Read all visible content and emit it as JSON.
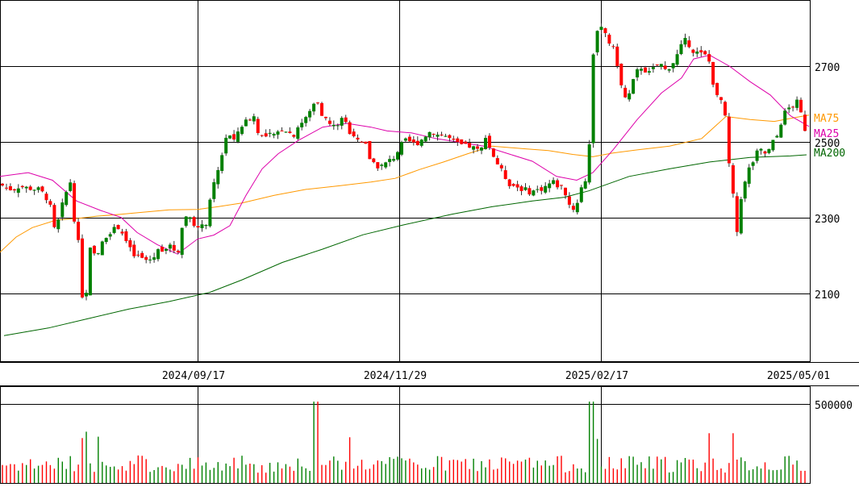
{
  "chart_data": [
    {
      "type": "candlestick",
      "title": "",
      "xlabel": "",
      "ylabel": "",
      "ylim": [
        1960,
        2840
      ],
      "yticks": [
        2100,
        2300,
        2500,
        2700
      ],
      "xticks": [
        "2024/09/17",
        "2024/11/29",
        "2025/02/17",
        "2025/05/01"
      ],
      "grid": true,
      "legend_placement": "right",
      "colors": {
        "up": "#008000",
        "down": "#ff0000",
        "ma25": "#dd00aa",
        "ma75": "#ff9900",
        "ma200": "#006600",
        "grid": "#000000"
      },
      "series": [
        {
          "name": "MA75",
          "color": "#ff9900",
          "values": [
            [
              0,
              2210
            ],
            [
              20,
              2250
            ],
            [
              40,
              2275
            ],
            [
              70,
              2295
            ],
            [
              100,
              2300
            ],
            [
              120,
              2305
            ],
            [
              150,
              2310
            ],
            [
              170,
              2314
            ],
            [
              210,
              2322
            ],
            [
              245,
              2323
            ],
            [
              270,
              2330
            ],
            [
              300,
              2340
            ],
            [
              340,
              2360
            ],
            [
              380,
              2376
            ],
            [
              420,
              2385
            ],
            [
              460,
              2395
            ],
            [
              490,
              2405
            ],
            [
              520,
              2428
            ],
            [
              550,
              2448
            ],
            [
              580,
              2470
            ],
            [
              610,
              2490
            ],
            [
              650,
              2483
            ],
            [
              680,
              2478
            ],
            [
              710,
              2468
            ],
            [
              735,
              2462
            ],
            [
              760,
              2472
            ],
            [
              790,
              2480
            ],
            [
              830,
              2490
            ],
            [
              870,
              2510
            ],
            [
              900,
              2568
            ],
            [
              930,
              2560
            ],
            [
              960,
              2555
            ],
            [
              990,
              2567
            ],
            [
              1003,
              2572
            ]
          ]
        },
        {
          "name": "MA25",
          "color": "#dd00aa",
          "values": [
            [
              0,
              2410
            ],
            [
              35,
              2420
            ],
            [
              65,
              2400
            ],
            [
              95,
              2345
            ],
            [
              125,
              2320
            ],
            [
              150,
              2302
            ],
            [
              170,
              2262
            ],
            [
              195,
              2230
            ],
            [
              220,
              2205
            ],
            [
              245,
              2245
            ],
            [
              265,
              2255
            ],
            [
              285,
              2280
            ],
            [
              305,
              2360
            ],
            [
              325,
              2430
            ],
            [
              345,
              2470
            ],
            [
              370,
              2505
            ],
            [
              400,
              2540
            ],
            [
              430,
              2550
            ],
            [
              460,
              2540
            ],
            [
              480,
              2530
            ],
            [
              510,
              2525
            ],
            [
              540,
              2510
            ],
            [
              570,
              2500
            ],
            [
              600,
              2490
            ],
            [
              630,
              2470
            ],
            [
              660,
              2450
            ],
            [
              690,
              2410
            ],
            [
              715,
              2400
            ],
            [
              735,
              2420
            ],
            [
              760,
              2480
            ],
            [
              790,
              2560
            ],
            [
              820,
              2630
            ],
            [
              845,
              2670
            ],
            [
              860,
              2720
            ],
            [
              880,
              2730
            ],
            [
              905,
              2700
            ],
            [
              930,
              2660
            ],
            [
              955,
              2625
            ],
            [
              980,
              2570
            ],
            [
              1003,
              2542
            ]
          ]
        },
        {
          "name": "MA200",
          "color": "#006600",
          "values": [
            [
              5,
              1990
            ],
            [
              60,
              2010
            ],
            [
              110,
              2035
            ],
            [
              160,
              2060
            ],
            [
              210,
              2080
            ],
            [
              260,
              2104
            ],
            [
              300,
              2137
            ],
            [
              350,
              2183
            ],
            [
              400,
              2218
            ],
            [
              450,
              2256
            ],
            [
              500,
              2282
            ],
            [
              560,
              2310
            ],
            [
              610,
              2330
            ],
            [
              660,
              2345
            ],
            [
              700,
              2355
            ],
            [
              730,
              2372
            ],
            [
              780,
              2410
            ],
            [
              830,
              2430
            ],
            [
              880,
              2448
            ],
            [
              930,
              2460
            ],
            [
              980,
              2464
            ],
            [
              1000,
              2467
            ]
          ]
        }
      ],
      "volume_ylim": [
        0,
        600000
      ],
      "volume_ticks": [
        500000
      ]
    }
  ],
  "labels": {
    "ma75": "MA75",
    "ma25": "MA25",
    "ma200": "MA200",
    "y2700": "2700",
    "y2500": "2500",
    "y2300": "2300",
    "y2100": "2100",
    "x1": "2024/09/17",
    "x2": "2024/11/29",
    "x3": "2025/02/17",
    "x4": "2025/05/01",
    "vol_tick": "500000"
  }
}
